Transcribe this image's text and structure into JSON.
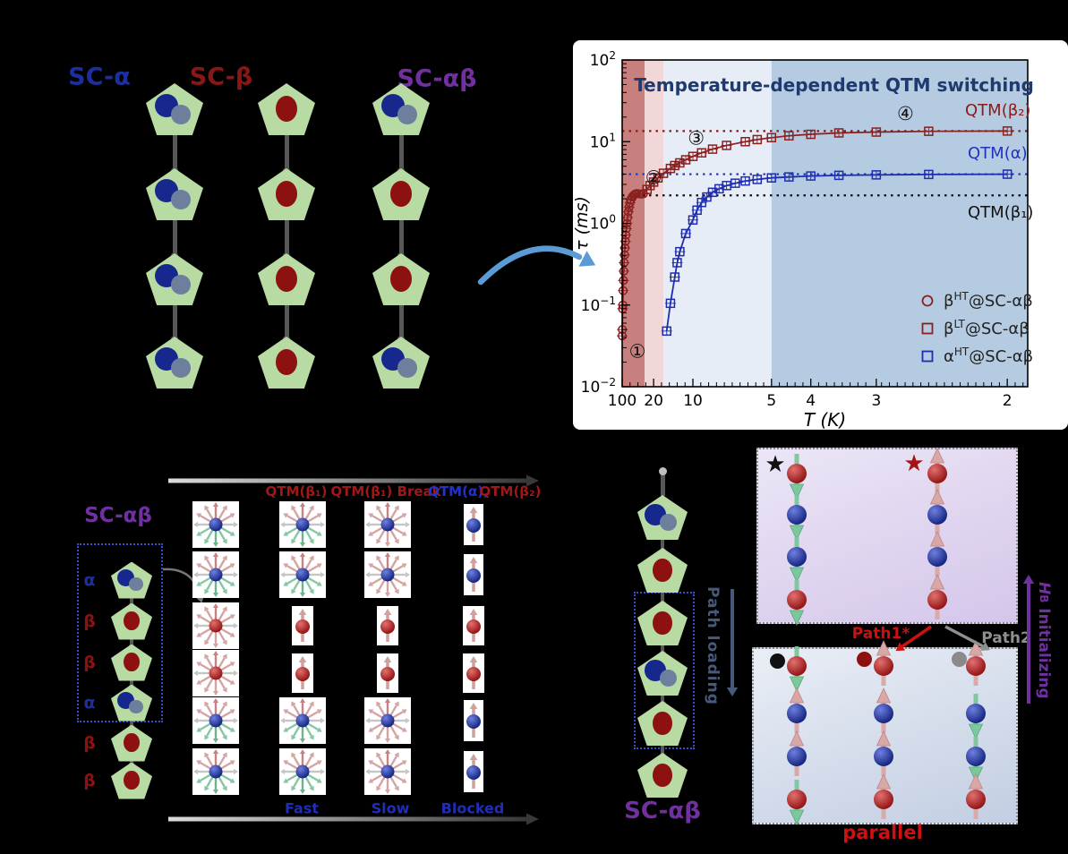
{
  "figure": {
    "background": "#000000"
  },
  "panel_a": {
    "labels": [
      {
        "text": "SC-α",
        "color": "#1c2f9e"
      },
      {
        "text": "SC-β",
        "color": "#8b1616"
      },
      {
        "text": "SC-αβ",
        "color": "#7030a0"
      }
    ],
    "chains": [
      {
        "x": 195,
        "rows": [
          122,
          217,
          312,
          405
        ],
        "units": [
          "alpha",
          "alpha",
          "alpha",
          "alpha"
        ]
      },
      {
        "x": 320,
        "rows": [
          122,
          217,
          312,
          405
        ],
        "units": [
          "beta",
          "beta",
          "beta",
          "beta"
        ]
      },
      {
        "x": 448,
        "rows": [
          122,
          217,
          312,
          405
        ],
        "units": [
          "alpha",
          "beta",
          "beta",
          "alpha"
        ]
      }
    ]
  },
  "chart_data": {
    "type": "scatter",
    "title": "Temperature-dependent QTM switching",
    "title_color": "#1e3a6e",
    "xlabel": "T (K)",
    "ylabel": "τ (ms)",
    "x_scale": "linear in 1/T",
    "x_ticks": [
      100,
      20,
      10,
      5,
      4,
      3,
      2
    ],
    "x_range_invT": [
      0.01,
      0.526
    ],
    "y_scale": "log10",
    "y_tick_exponents": [
      "2",
      "1",
      "0",
      "−1",
      "−2"
    ],
    "ylim": [
      0.01,
      100
    ],
    "grid": false,
    "legend_position": "lower right",
    "bands": [
      {
        "T_from": 100,
        "T_to": 26,
        "color": "#c8807e"
      },
      {
        "T_from": 26,
        "T_to": 16,
        "color": "#f1d7d7"
      },
      {
        "T_from": 16,
        "T_to": 5,
        "color": "#e7edf6"
      },
      {
        "T_from": 5,
        "T_to": 1.9,
        "color": "#b4cbe1"
      }
    ],
    "qtm_lines": [
      {
        "label": "QTM(β₂)",
        "tau": 13.5,
        "color": "#8b1a1a",
        "label_x": 438,
        "label_y": 84
      },
      {
        "label": "QTM(α)",
        "tau": 4.0,
        "color": "#2233bb",
        "label_x": 441,
        "label_y": 132
      },
      {
        "label": "QTM(β₁)",
        "tau": 2.2,
        "color": "#111111",
        "label_x": 441,
        "label_y": 198
      }
    ],
    "annotations": [
      {
        "text": "①",
        "T": 34,
        "tau": 0.027
      },
      {
        "text": "②",
        "T": 20,
        "tau": 3.6
      },
      {
        "text": "③",
        "T": 9.6,
        "tau": 11.0
      },
      {
        "text": "④",
        "T": 2.7,
        "tau": 22.0
      }
    ],
    "series": [
      {
        "name": "βᴴᵀ@SC-αβ",
        "marker": "circle",
        "color": "#8b2020",
        "points": [
          [
            100,
            0.042
          ],
          [
            98,
            0.05
          ],
          [
            95,
            0.09
          ],
          [
            92,
            0.1
          ],
          [
            89,
            0.15
          ],
          [
            86,
            0.2
          ],
          [
            83,
            0.26
          ],
          [
            80,
            0.33
          ],
          [
            77,
            0.41
          ],
          [
            74,
            0.5
          ],
          [
            71,
            0.6
          ],
          [
            68,
            0.72
          ],
          [
            65,
            0.86
          ],
          [
            62,
            1.0
          ],
          [
            59,
            1.18
          ],
          [
            56,
            1.38
          ],
          [
            53,
            1.58
          ],
          [
            50,
            1.78
          ],
          [
            47,
            1.95
          ],
          [
            44,
            2.1
          ],
          [
            41,
            2.2
          ],
          [
            38,
            2.28
          ],
          [
            35,
            2.32
          ],
          [
            32,
            2.3
          ],
          [
            29,
            2.28
          ],
          [
            27,
            2.3
          ]
        ]
      },
      {
        "name": "βᴸᵀ@SC-αβ",
        "marker": "square",
        "color": "#8b2020",
        "points": [
          [
            24,
            2.6
          ],
          [
            22,
            2.9
          ],
          [
            20,
            3.2
          ],
          [
            18,
            3.6
          ],
          [
            16,
            4.1
          ],
          [
            14,
            4.7
          ],
          [
            13,
            5.1
          ],
          [
            12,
            5.5
          ],
          [
            11,
            6.0
          ],
          [
            10,
            6.6
          ],
          [
            9,
            7.3
          ],
          [
            8,
            8.1
          ],
          [
            7,
            9.0
          ],
          [
            6,
            10.0
          ],
          [
            5.5,
            10.6
          ],
          [
            5,
            11.2
          ],
          [
            4.5,
            11.8
          ],
          [
            4,
            12.3
          ],
          [
            3.5,
            12.8
          ],
          [
            3,
            13.1
          ],
          [
            2.5,
            13.4
          ],
          [
            2,
            13.5
          ]
        ]
      },
      {
        "name": "αᴴᵀ@SC-αβ",
        "marker": "square",
        "color": "#1f2db0",
        "points": [
          [
            15,
            0.048
          ],
          [
            14,
            0.105
          ],
          [
            13,
            0.22
          ],
          [
            12.5,
            0.33
          ],
          [
            12,
            0.45
          ],
          [
            11,
            0.75
          ],
          [
            10,
            1.1
          ],
          [
            9.5,
            1.45
          ],
          [
            9,
            1.8
          ],
          [
            8.5,
            2.1
          ],
          [
            8,
            2.4
          ],
          [
            7.5,
            2.65
          ],
          [
            7,
            2.9
          ],
          [
            6.5,
            3.1
          ],
          [
            6,
            3.3
          ],
          [
            5.5,
            3.45
          ],
          [
            5,
            3.6
          ],
          [
            4.5,
            3.7
          ],
          [
            4,
            3.8
          ],
          [
            3.5,
            3.87
          ],
          [
            3,
            3.92
          ],
          [
            2.5,
            3.97
          ],
          [
            2,
            4.0
          ]
        ]
      }
    ],
    "legend": [
      {
        "marker": "circle",
        "color": "#8b2020",
        "pre": "β",
        "sup": "HT",
        "post": "@SC-αβ"
      },
      {
        "marker": "square",
        "color": "#8b2020",
        "pre": "β",
        "sup": "LT",
        "post": "@SC-αβ"
      },
      {
        "marker": "square",
        "color": "#1f2db0",
        "pre": "α",
        "sup": "HT",
        "post": "@SC-αβ"
      }
    ]
  },
  "panel_c": {
    "chain_label": "SC-αβ",
    "chain_label_color": "#7030a0",
    "unit_types": [
      "alpha",
      "beta",
      "beta",
      "alpha",
      "beta",
      "beta"
    ],
    "unit_labels": [
      "α",
      "β",
      "β",
      "α",
      "β",
      "β"
    ],
    "alpha_color": "#1c2f9e",
    "beta_color": "#8e1111",
    "headers": [
      {
        "text": "QTM(β₁)",
        "color": "#a01818",
        "x": 331
      },
      {
        "text": "QTM(β₁) Break",
        "color": "#a01818",
        "x": 431
      },
      {
        "text": "QTM(α),",
        "color": "#2233cc",
        "x": 512
      },
      {
        "text": "QTM(β₂)",
        "color": "#a01818",
        "x": 570
      }
    ],
    "footers": [
      {
        "text": "Fast",
        "x": 337
      },
      {
        "text": "Slow",
        "x": 436
      },
      {
        "text": "Blocked",
        "x": 528
      }
    ],
    "footer_color": "#1f2dbb",
    "grid_cells": [
      [
        "blue-bi",
        "blue-bi",
        "blue-pink",
        "blue-up"
      ],
      [
        "blue-bi",
        "blue-bi",
        "blue-pink",
        "blue-up"
      ],
      [
        "red-pink",
        "red-up",
        "red-up",
        "red-up"
      ],
      [
        "red-pink",
        "red-up",
        "red-up",
        "red-up"
      ],
      [
        "blue-bi",
        "blue-bi",
        "blue-pink",
        "blue-up"
      ],
      [
        "blue-bi",
        "blue-bi",
        "blue-pink",
        "blue-up"
      ]
    ]
  },
  "panel_d": {
    "chain_label": "SC-αβ",
    "chain_label_color": "#7030a0",
    "unit_types": [
      "alpha",
      "beta",
      "beta",
      "alpha",
      "beta",
      "beta"
    ],
    "path_loading": "Path loading",
    "path_loading_color": "#46597a",
    "top_panel": {
      "marker_left": {
        "char": "★",
        "color": "#111111"
      },
      "marker_right": {
        "char": "★",
        "color": "#a31515"
      },
      "chains": [
        {
          "x": 43,
          "spins": [
            [
              "red",
              "down"
            ],
            [
              "blue",
              "down"
            ],
            [
              "blue",
              "down"
            ],
            [
              "red",
              "down"
            ]
          ]
        },
        {
          "x": 200,
          "spins": [
            [
              "red",
              "up"
            ],
            [
              "blue",
              "up"
            ],
            [
              "blue",
              "up"
            ],
            [
              "red",
              "up"
            ]
          ]
        }
      ]
    },
    "path1": {
      "text": "Path1*",
      "color": "#cc1111"
    },
    "path2": {
      "text": "Path2",
      "color": "#8f8f8f"
    },
    "bottom_panel": {
      "dot_colors": [
        "#111111",
        "#8e1111",
        "#8a8a8a"
      ],
      "chains": [
        {
          "x": 48,
          "spins": [
            [
              "red",
              "down"
            ],
            [
              "blue",
              "up"
            ],
            [
              "blue",
              "up"
            ],
            [
              "red",
              "down"
            ]
          ]
        },
        {
          "x": 145,
          "spins": [
            [
              "red",
              "up"
            ],
            [
              "blue",
              "up"
            ],
            [
              "blue",
              "up"
            ],
            [
              "red",
              "up"
            ]
          ]
        },
        {
          "x": 248,
          "spins": [
            [
              "red",
              "up"
            ],
            [
              "blue",
              "down"
            ],
            [
              "blue",
              "down"
            ],
            [
              "red",
              "up"
            ]
          ]
        }
      ],
      "caption": "parallel",
      "caption_color": "#cc1111"
    },
    "hb_label": {
      "h": "H",
      "sub": "B",
      "rest": " Initializing",
      "color": "#7030a0"
    }
  }
}
